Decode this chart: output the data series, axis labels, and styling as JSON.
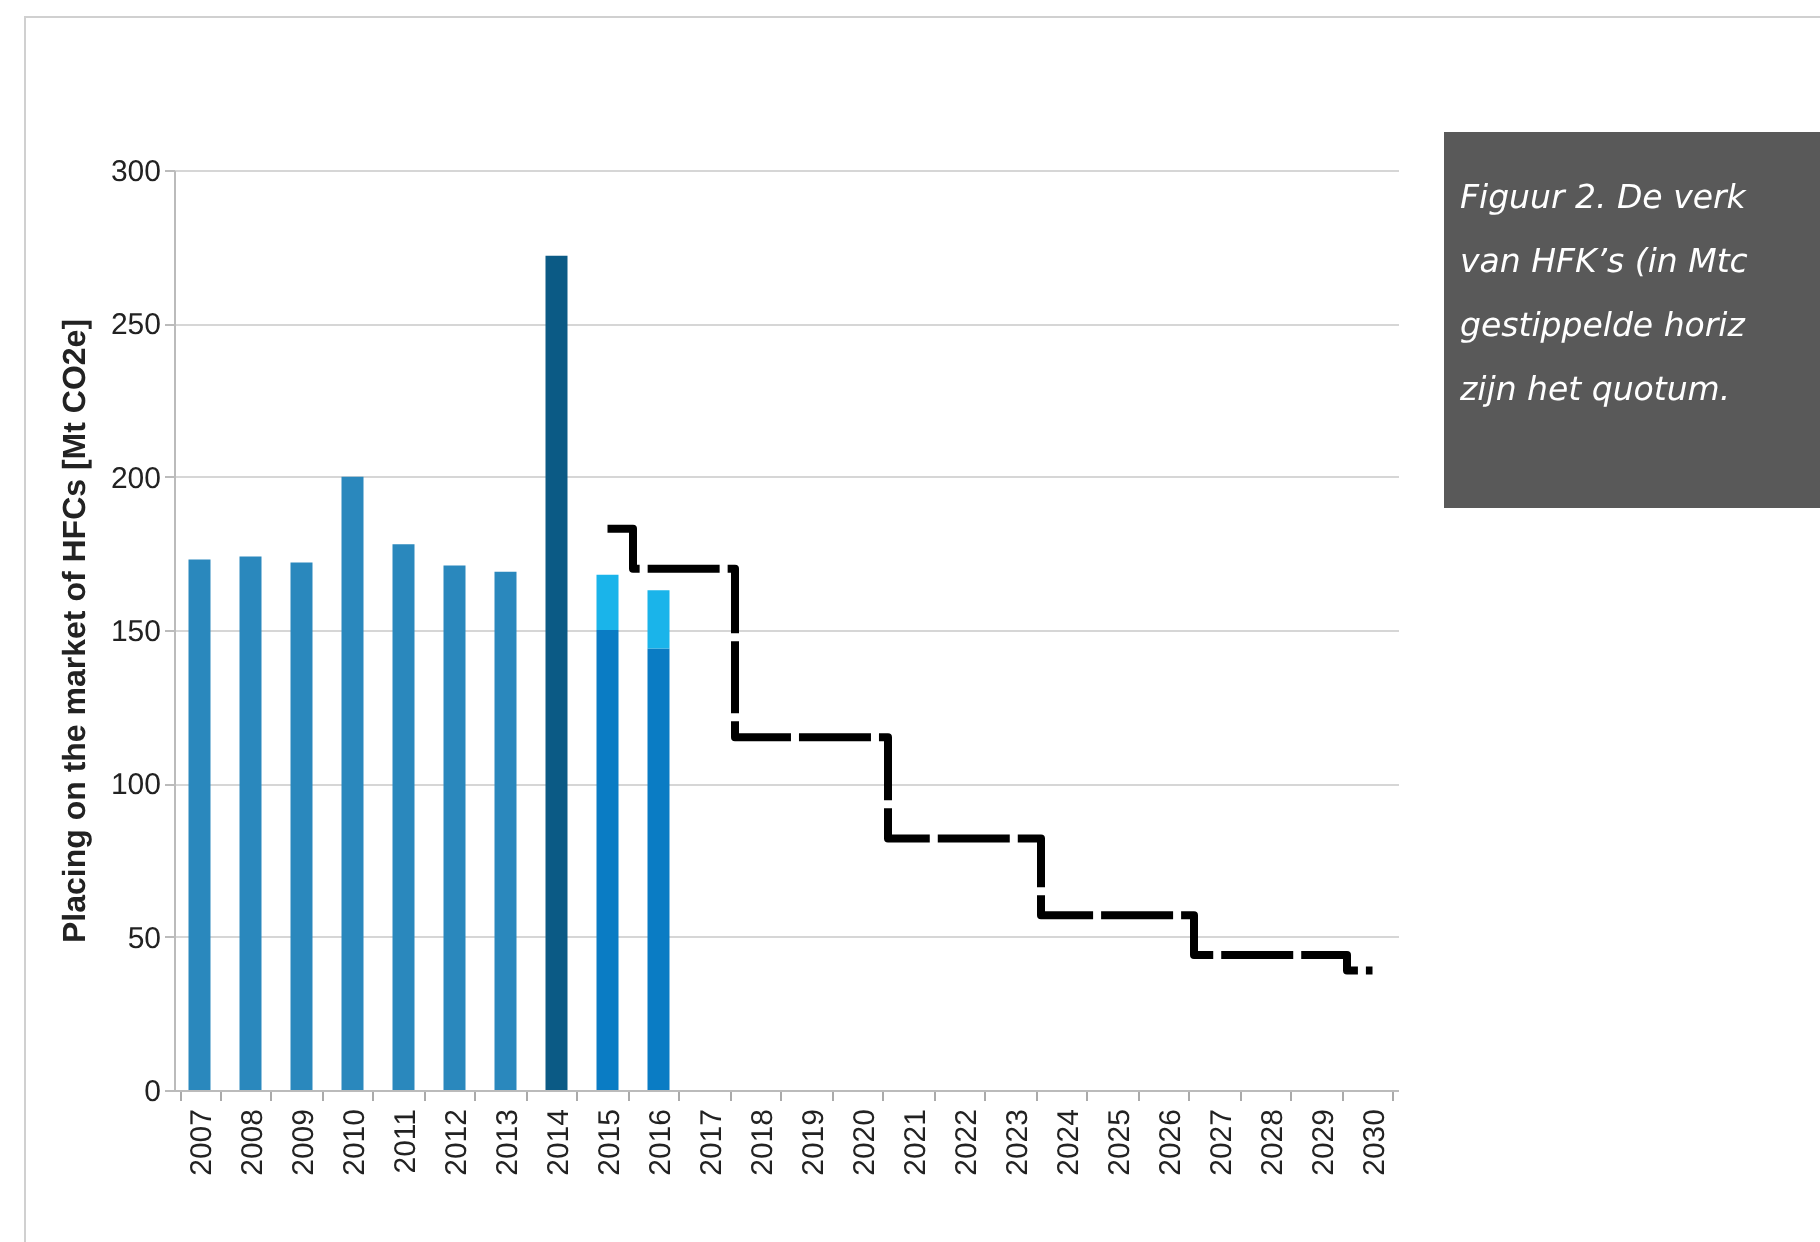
{
  "chart_data": {
    "type": "bar",
    "stacked": true,
    "ylabel": "Placing on the market of HFCs [Mt CO2e]",
    "categories": [
      "2007",
      "2008",
      "2009",
      "2010",
      "2011",
      "2012",
      "2013",
      "2014",
      "2015",
      "2016",
      "2017",
      "2018",
      "2019",
      "2020",
      "2021",
      "2022",
      "2023",
      "2024",
      "2025",
      "2026",
      "2027",
      "2028",
      "2029",
      "2030"
    ],
    "series": [
      {
        "type": "bar",
        "colors": [
          "#2a88bd",
          "#2a88bd",
          "#2a88bd",
          "#2a88bd",
          "#2a88bd",
          "#2a88bd",
          "#2a88bd",
          "#0b5a85",
          "#0a7cc4",
          "#0a7cc4",
          null,
          null,
          null,
          null,
          null,
          null,
          null,
          null,
          null,
          null,
          null,
          null,
          null,
          null
        ],
        "values": [
          173,
          174,
          172,
          200,
          178,
          171,
          169,
          272,
          150,
          144,
          null,
          null,
          null,
          null,
          null,
          null,
          null,
          null,
          null,
          null,
          null,
          null,
          null,
          null
        ]
      },
      {
        "type": "bar",
        "color": "#1ab4ea",
        "values": [
          null,
          null,
          null,
          null,
          null,
          null,
          null,
          null,
          18,
          19,
          null,
          null,
          null,
          null,
          null,
          null,
          null,
          null,
          null,
          null,
          null,
          null,
          null,
          null
        ]
      },
      {
        "type": "step",
        "color": "#000000",
        "line_style": "dashed",
        "values": [
          null,
          null,
          null,
          null,
          null,
          null,
          null,
          null,
          183,
          170,
          170,
          115,
          115,
          115,
          82,
          82,
          82,
          57,
          57,
          57,
          44,
          44,
          44,
          39
        ]
      }
    ],
    "ylim": [
      0,
      300
    ],
    "yticks": [
      0,
      50,
      100,
      150,
      200,
      250,
      300
    ],
    "grid": "y",
    "annotations": [
      "Figuur 2. De verk\nvan HFK’s (in Mtc\ngestippelde horiz\nzijn het quotum."
    ]
  }
}
